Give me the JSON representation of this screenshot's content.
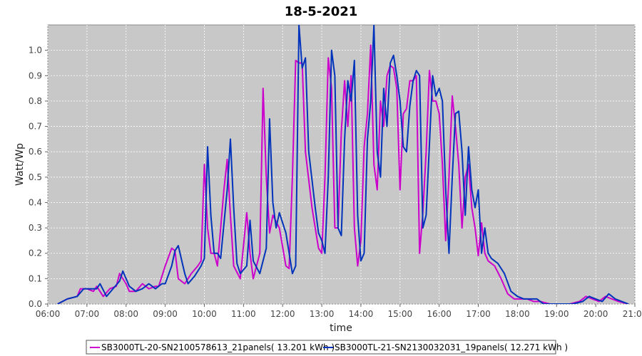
{
  "chart_data": {
    "type": "line",
    "title": "18-5-2021",
    "xlabel": "time",
    "ylabel": "Watt/Wp",
    "xlim": [
      "06:00",
      "21:00"
    ],
    "ylim": [
      0,
      1.1
    ],
    "x_ticks": [
      "06:00",
      "07:00",
      "08:00",
      "09:00",
      "10:00",
      "11:00",
      "12:00",
      "13:00",
      "14:00",
      "15:00",
      "16:00",
      "17:00",
      "18:00",
      "19:00",
      "20:00",
      "21:00"
    ],
    "y_ticks": [
      "0.0",
      "0.1",
      "0.2",
      "0.3",
      "0.4",
      "0.5",
      "0.6",
      "0.7",
      "0.8",
      "0.9",
      "1.0"
    ],
    "grid": true,
    "legend_position": "bottom",
    "series": [
      {
        "name": "SB3000TL-20-SN2100578613_21panels( 13.201 kWh )",
        "color": "#cc00cc",
        "points": [
          [
            "06:15",
            0.0
          ],
          [
            "06:30",
            0.02
          ],
          [
            "06:45",
            0.03
          ],
          [
            "06:50",
            0.06
          ],
          [
            "07:00",
            0.06
          ],
          [
            "07:10",
            0.05
          ],
          [
            "07:15",
            0.07
          ],
          [
            "07:25",
            0.03
          ],
          [
            "07:35",
            0.06
          ],
          [
            "07:45",
            0.07
          ],
          [
            "07:50",
            0.12
          ],
          [
            "08:00",
            0.08
          ],
          [
            "08:05",
            0.05
          ],
          [
            "08:15",
            0.05
          ],
          [
            "08:25",
            0.08
          ],
          [
            "08:35",
            0.06
          ],
          [
            "08:45",
            0.07
          ],
          [
            "08:50",
            0.07
          ],
          [
            "09:00",
            0.15
          ],
          [
            "09:10",
            0.22
          ],
          [
            "09:15",
            0.21
          ],
          [
            "09:20",
            0.1
          ],
          [
            "09:30",
            0.08
          ],
          [
            "09:40",
            0.12
          ],
          [
            "09:50",
            0.15
          ],
          [
            "09:55",
            0.17
          ],
          [
            "10:00",
            0.55
          ],
          [
            "10:05",
            0.3
          ],
          [
            "10:10",
            0.2
          ],
          [
            "10:15",
            0.2
          ],
          [
            "10:20",
            0.15
          ],
          [
            "10:30",
            0.45
          ],
          [
            "10:35",
            0.57
          ],
          [
            "10:40",
            0.35
          ],
          [
            "10:45",
            0.15
          ],
          [
            "10:55",
            0.1
          ],
          [
            "11:05",
            0.36
          ],
          [
            "11:10",
            0.2
          ],
          [
            "11:15",
            0.1
          ],
          [
            "11:25",
            0.2
          ],
          [
            "11:30",
            0.85
          ],
          [
            "11:35",
            0.5
          ],
          [
            "11:40",
            0.28
          ],
          [
            "11:45",
            0.35
          ],
          [
            "11:55",
            0.3
          ],
          [
            "12:05",
            0.15
          ],
          [
            "12:10",
            0.14
          ],
          [
            "12:15",
            0.5
          ],
          [
            "12:20",
            0.96
          ],
          [
            "12:25",
            0.95
          ],
          [
            "12:30",
            0.95
          ],
          [
            "12:35",
            0.6
          ],
          [
            "12:45",
            0.38
          ],
          [
            "12:50",
            0.3
          ],
          [
            "12:55",
            0.22
          ],
          [
            "13:00",
            0.2
          ],
          [
            "13:05",
            0.5
          ],
          [
            "13:10",
            0.97
          ],
          [
            "13:15",
            0.85
          ],
          [
            "13:20",
            0.3
          ],
          [
            "13:25",
            0.3
          ],
          [
            "13:30",
            0.68
          ],
          [
            "13:35",
            0.88
          ],
          [
            "13:40",
            0.7
          ],
          [
            "13:45",
            0.9
          ],
          [
            "13:50",
            0.3
          ],
          [
            "13:55",
            0.15
          ],
          [
            "14:00",
            0.25
          ],
          [
            "14:05",
            0.62
          ],
          [
            "14:10",
            0.75
          ],
          [
            "14:15",
            1.02
          ],
          [
            "14:20",
            0.55
          ],
          [
            "14:25",
            0.45
          ],
          [
            "14:30",
            0.8
          ],
          [
            "14:35",
            0.7
          ],
          [
            "14:40",
            0.9
          ],
          [
            "14:45",
            0.94
          ],
          [
            "14:50",
            0.93
          ],
          [
            "14:55",
            0.85
          ],
          [
            "15:00",
            0.45
          ],
          [
            "15:05",
            0.75
          ],
          [
            "15:10",
            0.77
          ],
          [
            "15:15",
            0.88
          ],
          [
            "15:20",
            0.88
          ],
          [
            "15:25",
            0.9
          ],
          [
            "15:30",
            0.2
          ],
          [
            "15:35",
            0.36
          ],
          [
            "15:40",
            0.6
          ],
          [
            "15:45",
            0.92
          ],
          [
            "15:50",
            0.8
          ],
          [
            "15:55",
            0.8
          ],
          [
            "16:00",
            0.75
          ],
          [
            "16:05",
            0.55
          ],
          [
            "16:10",
            0.25
          ],
          [
            "16:15",
            0.5
          ],
          [
            "16:20",
            0.82
          ],
          [
            "16:25",
            0.7
          ],
          [
            "16:30",
            0.55
          ],
          [
            "16:35",
            0.3
          ],
          [
            "16:40",
            0.5
          ],
          [
            "16:45",
            0.55
          ],
          [
            "16:50",
            0.38
          ],
          [
            "16:55",
            0.3
          ],
          [
            "17:00",
            0.19
          ],
          [
            "17:05",
            0.32
          ],
          [
            "17:10",
            0.2
          ],
          [
            "17:15",
            0.17
          ],
          [
            "17:25",
            0.15
          ],
          [
            "17:35",
            0.1
          ],
          [
            "17:45",
            0.04
          ],
          [
            "17:55",
            0.02
          ],
          [
            "18:05",
            0.02
          ],
          [
            "18:15",
            0.02
          ],
          [
            "18:25",
            0.01
          ],
          [
            "18:35",
            0.01
          ],
          [
            "18:50",
            0.0
          ],
          [
            "19:05",
            0.0
          ],
          [
            "19:20",
            0.0
          ],
          [
            "19:35",
            0.01
          ],
          [
            "19:45",
            0.03
          ],
          [
            "19:55",
            0.02
          ],
          [
            "20:05",
            0.01
          ],
          [
            "20:15",
            0.03
          ],
          [
            "20:25",
            0.02
          ],
          [
            "20:35",
            0.01
          ],
          [
            "20:50",
            0.0
          ]
        ]
      },
      {
        "name": "SB3000TL-21-SN2130032031_19panels( 12.271 kWh )",
        "color": "#0033bb",
        "points": [
          [
            "06:15",
            0.0
          ],
          [
            "06:30",
            0.02
          ],
          [
            "06:45",
            0.03
          ],
          [
            "06:55",
            0.06
          ],
          [
            "07:05",
            0.06
          ],
          [
            "07:15",
            0.06
          ],
          [
            "07:20",
            0.08
          ],
          [
            "07:30",
            0.03
          ],
          [
            "07:40",
            0.06
          ],
          [
            "07:50",
            0.09
          ],
          [
            "07:55",
            0.13
          ],
          [
            "08:05",
            0.07
          ],
          [
            "08:15",
            0.05
          ],
          [
            "08:25",
            0.06
          ],
          [
            "08:35",
            0.08
          ],
          [
            "08:45",
            0.06
          ],
          [
            "08:55",
            0.08
          ],
          [
            "09:00",
            0.08
          ],
          [
            "09:10",
            0.15
          ],
          [
            "09:15",
            0.21
          ],
          [
            "09:20",
            0.23
          ],
          [
            "09:30",
            0.12
          ],
          [
            "09:35",
            0.08
          ],
          [
            "09:45",
            0.11
          ],
          [
            "09:55",
            0.15
          ],
          [
            "10:00",
            0.18
          ],
          [
            "10:05",
            0.62
          ],
          [
            "10:10",
            0.35
          ],
          [
            "10:15",
            0.2
          ],
          [
            "10:20",
            0.2
          ],
          [
            "10:25",
            0.18
          ],
          [
            "10:35",
            0.45
          ],
          [
            "10:40",
            0.65
          ],
          [
            "10:45",
            0.38
          ],
          [
            "10:50",
            0.16
          ],
          [
            "10:55",
            0.12
          ],
          [
            "11:05",
            0.15
          ],
          [
            "11:10",
            0.33
          ],
          [
            "11:15",
            0.17
          ],
          [
            "11:25",
            0.12
          ],
          [
            "11:35",
            0.22
          ],
          [
            "11:40",
            0.73
          ],
          [
            "11:45",
            0.4
          ],
          [
            "11:50",
            0.3
          ],
          [
            "11:55",
            0.36
          ],
          [
            "12:05",
            0.28
          ],
          [
            "12:15",
            0.12
          ],
          [
            "12:20",
            0.15
          ],
          [
            "12:25",
            1.1
          ],
          [
            "12:30",
            0.93
          ],
          [
            "12:35",
            0.97
          ],
          [
            "12:40",
            0.6
          ],
          [
            "12:50",
            0.38
          ],
          [
            "12:55",
            0.28
          ],
          [
            "13:00",
            0.25
          ],
          [
            "13:05",
            0.2
          ],
          [
            "13:10",
            0.5
          ],
          [
            "13:15",
            1.0
          ],
          [
            "13:20",
            0.9
          ],
          [
            "13:25",
            0.3
          ],
          [
            "13:30",
            0.27
          ],
          [
            "13:35",
            0.65
          ],
          [
            "13:40",
            0.88
          ],
          [
            "13:45",
            0.8
          ],
          [
            "13:50",
            0.96
          ],
          [
            "13:55",
            0.35
          ],
          [
            "14:00",
            0.17
          ],
          [
            "14:05",
            0.2
          ],
          [
            "14:10",
            0.65
          ],
          [
            "14:15",
            0.8
          ],
          [
            "14:20",
            1.1
          ],
          [
            "14:25",
            0.6
          ],
          [
            "14:30",
            0.5
          ],
          [
            "14:35",
            0.85
          ],
          [
            "14:40",
            0.7
          ],
          [
            "14:45",
            0.95
          ],
          [
            "14:50",
            0.98
          ],
          [
            "14:55",
            0.9
          ],
          [
            "15:00",
            0.8
          ],
          [
            "15:05",
            0.62
          ],
          [
            "15:10",
            0.6
          ],
          [
            "15:15",
            0.78
          ],
          [
            "15:20",
            0.88
          ],
          [
            "15:25",
            0.92
          ],
          [
            "15:30",
            0.9
          ],
          [
            "15:35",
            0.3
          ],
          [
            "15:40",
            0.35
          ],
          [
            "15:45",
            0.63
          ],
          [
            "15:50",
            0.9
          ],
          [
            "15:55",
            0.82
          ],
          [
            "16:00",
            0.85
          ],
          [
            "16:05",
            0.8
          ],
          [
            "16:10",
            0.45
          ],
          [
            "16:15",
            0.2
          ],
          [
            "16:20",
            0.5
          ],
          [
            "16:25",
            0.75
          ],
          [
            "16:30",
            0.76
          ],
          [
            "16:35",
            0.6
          ],
          [
            "16:40",
            0.35
          ],
          [
            "16:45",
            0.62
          ],
          [
            "16:50",
            0.45
          ],
          [
            "16:55",
            0.38
          ],
          [
            "17:00",
            0.45
          ],
          [
            "17:05",
            0.2
          ],
          [
            "17:10",
            0.3
          ],
          [
            "17:15",
            0.2
          ],
          [
            "17:20",
            0.18
          ],
          [
            "17:30",
            0.16
          ],
          [
            "17:40",
            0.12
          ],
          [
            "17:50",
            0.05
          ],
          [
            "18:00",
            0.03
          ],
          [
            "18:10",
            0.02
          ],
          [
            "18:20",
            0.02
          ],
          [
            "18:30",
            0.02
          ],
          [
            "18:40",
            0.0
          ],
          [
            "18:55",
            0.0
          ],
          [
            "19:10",
            0.0
          ],
          [
            "19:25",
            0.0
          ],
          [
            "19:40",
            0.01
          ],
          [
            "19:50",
            0.03
          ],
          [
            "20:00",
            0.02
          ],
          [
            "20:10",
            0.01
          ],
          [
            "20:20",
            0.04
          ],
          [
            "20:30",
            0.02
          ],
          [
            "20:40",
            0.01
          ],
          [
            "20:50",
            0.0
          ]
        ]
      }
    ]
  }
}
